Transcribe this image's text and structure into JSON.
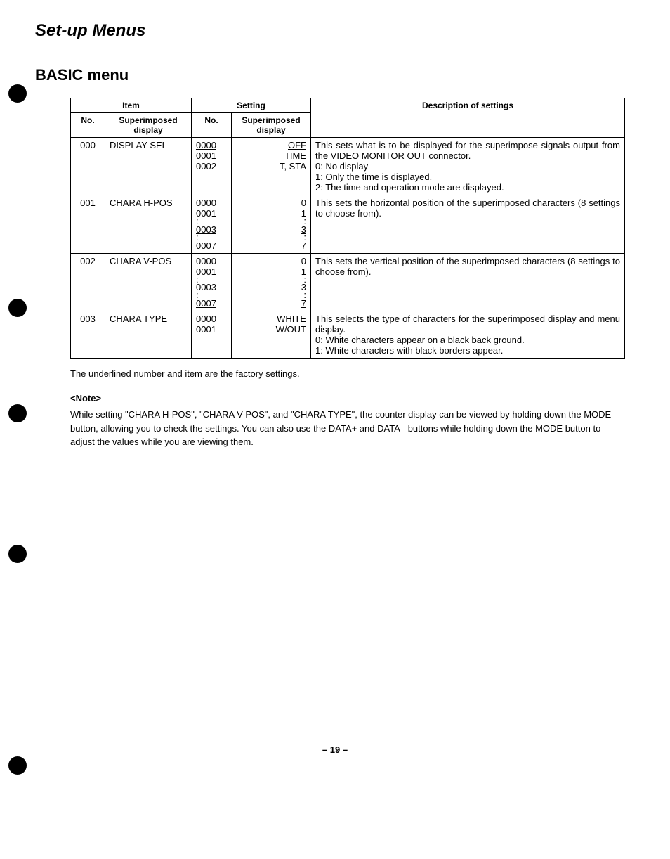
{
  "page_title": "Set-up Menus",
  "section_title": "BASIC menu",
  "headers": {
    "item": "Item",
    "setting": "Setting",
    "desc": "Description of settings",
    "no": "No.",
    "superimposed": "Superimposed display"
  },
  "rows": [
    {
      "no": "000",
      "item": "DISPLAY SEL",
      "setting_no": [
        {
          "t": "0000",
          "u": true
        },
        {
          "t": "0001"
        },
        {
          "t": "0002"
        }
      ],
      "setting_val": [
        {
          "t": "OFF",
          "u": true
        },
        {
          "t": "TIME"
        },
        {
          "t": "T, STA"
        }
      ],
      "desc": "This sets what is to be displayed for the superimpose signals output from the VIDEO MONITOR OUT connector.\n0: No display\n1: Only the time is displayed.\n2: The time and operation mode are displayed."
    },
    {
      "no": "001",
      "item": "CHARA H-POS",
      "setting_no": [
        {
          "t": "0000"
        },
        {
          "t": "0001"
        },
        {
          "t": ":",
          "dots": true
        },
        {
          "t": "0003",
          "u": true
        },
        {
          "t": ":",
          "dots": true
        },
        {
          "t": "0007"
        }
      ],
      "setting_val": [
        {
          "t": "0"
        },
        {
          "t": "1"
        },
        {
          "t": ":",
          "dots": true
        },
        {
          "t": "3",
          "u": true
        },
        {
          "t": ":",
          "dots": true
        },
        {
          "t": "7"
        }
      ],
      "desc": "This sets the horizontal position of the superimposed characters (8 settings to choose from)."
    },
    {
      "no": "002",
      "item": "CHARA V-POS",
      "setting_no": [
        {
          "t": "0000"
        },
        {
          "t": "0001"
        },
        {
          "t": ":",
          "dots": true
        },
        {
          "t": "0003"
        },
        {
          "t": ":",
          "dots": true
        },
        {
          "t": "0007",
          "u": true
        }
      ],
      "setting_val": [
        {
          "t": "0"
        },
        {
          "t": "1"
        },
        {
          "t": ":",
          "dots": true
        },
        {
          "t": "3"
        },
        {
          "t": ":",
          "dots": true
        },
        {
          "t": "7",
          "u": true
        }
      ],
      "desc": "This sets the vertical position of the superimposed characters (8 settings to choose from)."
    },
    {
      "no": "003",
      "item": "CHARA TYPE",
      "setting_no": [
        {
          "t": "0000",
          "u": true
        },
        {
          "t": "0001"
        }
      ],
      "setting_val": [
        {
          "t": "WHITE",
          "u": true
        },
        {
          "t": "W/OUT"
        }
      ],
      "desc": "This selects the type of characters for the superimposed display and menu display.\n0: White characters appear on a black back ground.\n1: White characters with black borders appear."
    }
  ],
  "footnote": "The underlined number and item are the factory settings.",
  "note_head": "<Note>",
  "note_body": "While setting \"CHARA H-POS\", \"CHARA V-POS\", and \"CHARA TYPE\", the counter display can be viewed by holding down the MODE button, allowing you to check the settings.  You can also use the DATA+ and DATA– buttons while holding down the MODE button to adjust the values while you are viewing them.",
  "page_number": "– 19 –"
}
